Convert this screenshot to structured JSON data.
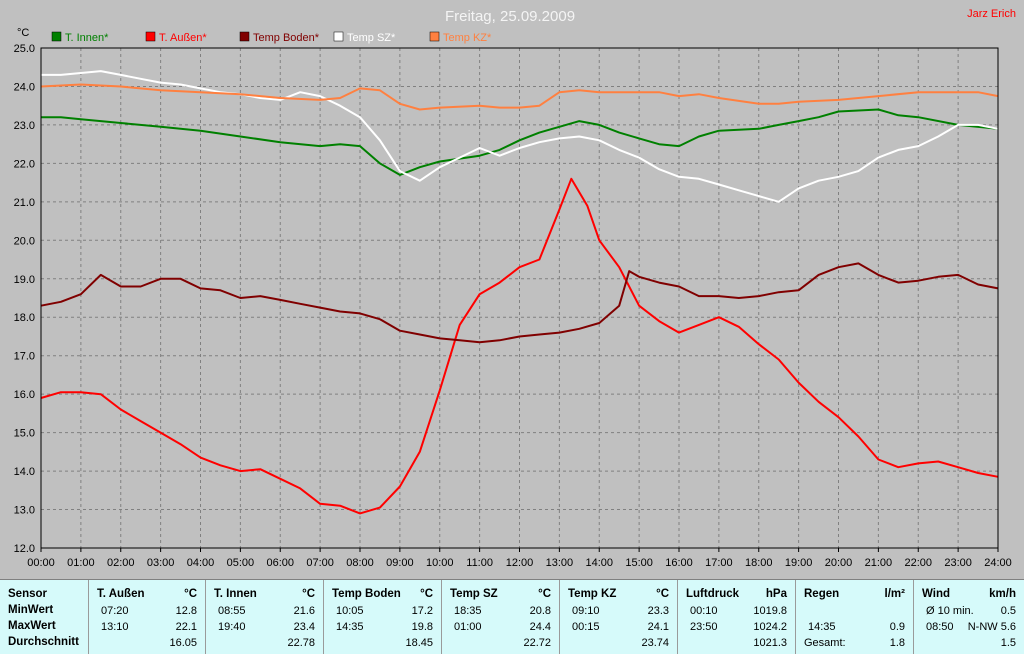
{
  "chart_data": {
    "type": "line",
    "title": "Freitag, 25.09.2009",
    "author": "Jarz Erich",
    "ylabel": "°C",
    "ylim": [
      12.0,
      25.0
    ],
    "yticks": [
      "12.0",
      "13.0",
      "14.0",
      "15.0",
      "16.0",
      "17.0",
      "18.0",
      "19.0",
      "20.0",
      "21.0",
      "22.0",
      "23.0",
      "24.0",
      "25.0"
    ],
    "xlim": [
      0,
      24
    ],
    "xticks": [
      "00:00",
      "01:00",
      "02:00",
      "03:00",
      "04:00",
      "05:00",
      "06:00",
      "07:00",
      "08:00",
      "09:00",
      "10:00",
      "11:00",
      "12:00",
      "13:00",
      "14:00",
      "15:00",
      "16:00",
      "17:00",
      "18:00",
      "19:00",
      "20:00",
      "21:00",
      "22:00",
      "23:00",
      "24:00"
    ],
    "grid": true,
    "legend_position": "top-left",
    "series": [
      {
        "name": "T. Innen*",
        "color": "#008000",
        "points": [
          [
            0,
            23.2
          ],
          [
            0.5,
            23.2
          ],
          [
            1,
            23.15
          ],
          [
            2,
            23.05
          ],
          [
            3,
            22.95
          ],
          [
            4,
            22.85
          ],
          [
            5,
            22.7
          ],
          [
            6,
            22.55
          ],
          [
            7,
            22.45
          ],
          [
            7.5,
            22.5
          ],
          [
            8,
            22.45
          ],
          [
            8.5,
            22.0
          ],
          [
            9,
            21.7
          ],
          [
            9.5,
            21.9
          ],
          [
            10,
            22.05
          ],
          [
            11,
            22.2
          ],
          [
            11.5,
            22.35
          ],
          [
            12,
            22.6
          ],
          [
            12.5,
            22.8
          ],
          [
            13,
            22.95
          ],
          [
            13.5,
            23.1
          ],
          [
            14,
            23.0
          ],
          [
            14.5,
            22.8
          ],
          [
            15,
            22.65
          ],
          [
            15.5,
            22.5
          ],
          [
            16,
            22.45
          ],
          [
            16.5,
            22.7
          ],
          [
            17,
            22.85
          ],
          [
            18,
            22.9
          ],
          [
            18.5,
            23.0
          ],
          [
            19,
            23.1
          ],
          [
            19.5,
            23.2
          ],
          [
            20,
            23.35
          ],
          [
            21,
            23.4
          ],
          [
            21.5,
            23.25
          ],
          [
            22,
            23.2
          ],
          [
            23,
            23.0
          ],
          [
            24,
            22.9
          ]
        ]
      },
      {
        "name": "T. Außen*",
        "color": "#ff0000",
        "points": [
          [
            0,
            15.9
          ],
          [
            0.5,
            16.05
          ],
          [
            1,
            16.05
          ],
          [
            1.5,
            16.0
          ],
          [
            2,
            15.6
          ],
          [
            2.5,
            15.3
          ],
          [
            3,
            15.0
          ],
          [
            3.5,
            14.7
          ],
          [
            4,
            14.35
          ],
          [
            4.5,
            14.15
          ],
          [
            5,
            14.0
          ],
          [
            5.5,
            14.05
          ],
          [
            6,
            13.8
          ],
          [
            6.5,
            13.55
          ],
          [
            7,
            13.15
          ],
          [
            7.5,
            13.1
          ],
          [
            8,
            12.9
          ],
          [
            8.5,
            13.05
          ],
          [
            9,
            13.6
          ],
          [
            9.5,
            14.5
          ],
          [
            10,
            16.1
          ],
          [
            10.5,
            17.8
          ],
          [
            11,
            18.6
          ],
          [
            11.5,
            18.9
          ],
          [
            12,
            19.3
          ],
          [
            12.5,
            19.5
          ],
          [
            13,
            20.8
          ],
          [
            13.3,
            21.6
          ],
          [
            13.7,
            20.9
          ],
          [
            14,
            20.0
          ],
          [
            14.5,
            19.3
          ],
          [
            15,
            18.3
          ],
          [
            15.5,
            17.9
          ],
          [
            16,
            17.6
          ],
          [
            16.5,
            17.8
          ],
          [
            17,
            18.0
          ],
          [
            17.5,
            17.75
          ],
          [
            18,
            17.3
          ],
          [
            18.5,
            16.9
          ],
          [
            19,
            16.3
          ],
          [
            19.5,
            15.8
          ],
          [
            20,
            15.4
          ],
          [
            20.5,
            14.9
          ],
          [
            21,
            14.3
          ],
          [
            21.5,
            14.1
          ],
          [
            22,
            14.2
          ],
          [
            22.5,
            14.25
          ],
          [
            23,
            14.1
          ],
          [
            23.5,
            13.95
          ],
          [
            24,
            13.85
          ]
        ]
      },
      {
        "name": "Temp Boden*",
        "color": "#800000",
        "points": [
          [
            0,
            18.3
          ],
          [
            0.5,
            18.4
          ],
          [
            1,
            18.6
          ],
          [
            1.5,
            19.1
          ],
          [
            2,
            18.8
          ],
          [
            2.5,
            18.8
          ],
          [
            3,
            19.0
          ],
          [
            3.5,
            19.0
          ],
          [
            4,
            18.75
          ],
          [
            4.5,
            18.7
          ],
          [
            5,
            18.5
          ],
          [
            5.5,
            18.55
          ],
          [
            6,
            18.45
          ],
          [
            6.5,
            18.35
          ],
          [
            7,
            18.25
          ],
          [
            7.5,
            18.15
          ],
          [
            8,
            18.1
          ],
          [
            8.5,
            17.95
          ],
          [
            9,
            17.65
          ],
          [
            9.5,
            17.55
          ],
          [
            10,
            17.45
          ],
          [
            10.5,
            17.4
          ],
          [
            11,
            17.35
          ],
          [
            11.5,
            17.4
          ],
          [
            12,
            17.5
          ],
          [
            12.5,
            17.55
          ],
          [
            13,
            17.6
          ],
          [
            13.5,
            17.7
          ],
          [
            14,
            17.85
          ],
          [
            14.5,
            18.3
          ],
          [
            14.75,
            19.2
          ],
          [
            15,
            19.05
          ],
          [
            15.5,
            18.9
          ],
          [
            16,
            18.8
          ],
          [
            16.5,
            18.55
          ],
          [
            17,
            18.55
          ],
          [
            17.5,
            18.5
          ],
          [
            18,
            18.55
          ],
          [
            18.5,
            18.65
          ],
          [
            19,
            18.7
          ],
          [
            19.5,
            19.1
          ],
          [
            20,
            19.3
          ],
          [
            20.5,
            19.4
          ],
          [
            21,
            19.1
          ],
          [
            21.5,
            18.9
          ],
          [
            22,
            18.95
          ],
          [
            22.5,
            19.05
          ],
          [
            23,
            19.1
          ],
          [
            23.5,
            18.85
          ],
          [
            24,
            18.75
          ]
        ]
      },
      {
        "name": "Temp SZ*",
        "color": "#ffffff",
        "points": [
          [
            0,
            24.3
          ],
          [
            0.5,
            24.3
          ],
          [
            1,
            24.35
          ],
          [
            1.5,
            24.4
          ],
          [
            2,
            24.3
          ],
          [
            2.5,
            24.2
          ],
          [
            3,
            24.1
          ],
          [
            3.5,
            24.05
          ],
          [
            4,
            23.95
          ],
          [
            4.5,
            23.85
          ],
          [
            5,
            23.8
          ],
          [
            5.5,
            23.7
          ],
          [
            6,
            23.65
          ],
          [
            6.5,
            23.85
          ],
          [
            7,
            23.75
          ],
          [
            7.5,
            23.5
          ],
          [
            8,
            23.2
          ],
          [
            8.5,
            22.6
          ],
          [
            9,
            21.8
          ],
          [
            9.5,
            21.55
          ],
          [
            10,
            21.9
          ],
          [
            10.5,
            22.15
          ],
          [
            11,
            22.4
          ],
          [
            11.5,
            22.2
          ],
          [
            12,
            22.4
          ],
          [
            12.5,
            22.55
          ],
          [
            13,
            22.65
          ],
          [
            13.5,
            22.7
          ],
          [
            14,
            22.6
          ],
          [
            14.5,
            22.35
          ],
          [
            15,
            22.15
          ],
          [
            15.5,
            21.85
          ],
          [
            16,
            21.65
          ],
          [
            16.5,
            21.6
          ],
          [
            17,
            21.45
          ],
          [
            17.5,
            21.3
          ],
          [
            18,
            21.15
          ],
          [
            18.5,
            21.0
          ],
          [
            19,
            21.35
          ],
          [
            19.5,
            21.55
          ],
          [
            20,
            21.65
          ],
          [
            20.5,
            21.8
          ],
          [
            21,
            22.15
          ],
          [
            21.5,
            22.35
          ],
          [
            22,
            22.45
          ],
          [
            22.5,
            22.7
          ],
          [
            23,
            23.0
          ],
          [
            23.5,
            23.0
          ],
          [
            24,
            22.9
          ]
        ]
      },
      {
        "name": "Temp KZ*",
        "color": "#ff8040",
        "points": [
          [
            0,
            24.0
          ],
          [
            1,
            24.05
          ],
          [
            2,
            24.0
          ],
          [
            3,
            23.9
          ],
          [
            4,
            23.85
          ],
          [
            5,
            23.8
          ],
          [
            6,
            23.7
          ],
          [
            7,
            23.65
          ],
          [
            7.5,
            23.7
          ],
          [
            8,
            23.95
          ],
          [
            8.5,
            23.9
          ],
          [
            9,
            23.55
          ],
          [
            9.5,
            23.4
          ],
          [
            10,
            23.45
          ],
          [
            11,
            23.5
          ],
          [
            11.5,
            23.45
          ],
          [
            12,
            23.45
          ],
          [
            12.5,
            23.5
          ],
          [
            13,
            23.85
          ],
          [
            13.5,
            23.9
          ],
          [
            14,
            23.85
          ],
          [
            15,
            23.85
          ],
          [
            15.5,
            23.85
          ],
          [
            16,
            23.75
          ],
          [
            16.5,
            23.8
          ],
          [
            17,
            23.7
          ],
          [
            18,
            23.55
          ],
          [
            18.5,
            23.55
          ],
          [
            19,
            23.6
          ],
          [
            20,
            23.65
          ],
          [
            21,
            23.75
          ],
          [
            22,
            23.85
          ],
          [
            23,
            23.85
          ],
          [
            23.5,
            23.85
          ],
          [
            24,
            23.75
          ]
        ]
      }
    ]
  },
  "stats_table": {
    "columns": [
      {
        "header": "Sensor",
        "unit": "",
        "rows": [
          [
            "MinWert",
            "",
            ""
          ],
          [
            "MaxWert",
            "",
            ""
          ],
          [
            "Durchschnitt",
            "",
            ""
          ]
        ]
      },
      {
        "header": "T. Außen",
        "unit": "°C",
        "rows": [
          [
            "07:20",
            "12.8"
          ],
          [
            "13:10",
            "22.1"
          ],
          [
            "",
            "16.05"
          ]
        ]
      },
      {
        "header": "T. Innen",
        "unit": "°C",
        "rows": [
          [
            "08:55",
            "21.6"
          ],
          [
            "19:40",
            "23.4"
          ],
          [
            "",
            "22.78"
          ]
        ]
      },
      {
        "header": "Temp Boden",
        "unit": "°C",
        "rows": [
          [
            "10:05",
            "17.2"
          ],
          [
            "14:35",
            "19.8"
          ],
          [
            "",
            "18.45"
          ]
        ]
      },
      {
        "header": "Temp SZ",
        "unit": "°C",
        "rows": [
          [
            "18:35",
            "20.8"
          ],
          [
            "01:00",
            "24.4"
          ],
          [
            "",
            "22.72"
          ]
        ]
      },
      {
        "header": "Temp KZ",
        "unit": "°C",
        "rows": [
          [
            "09:10",
            "23.3"
          ],
          [
            "00:15",
            "24.1"
          ],
          [
            "",
            "23.74"
          ]
        ]
      },
      {
        "header": "Luftdruck",
        "unit": "hPa",
        "rows": [
          [
            "00:10",
            "1019.8"
          ],
          [
            "23:50",
            "1024.2"
          ],
          [
            "",
            "1021.3"
          ]
        ]
      },
      {
        "header": "Regen",
        "unit": "l/m²",
        "rows": [
          [
            "",
            ""
          ],
          [
            "14:35",
            "0.9"
          ],
          [
            "Gesamt:",
            "1.8"
          ]
        ]
      },
      {
        "header": "Wind",
        "unit": "km/h",
        "rows": [
          [
            "Ø 10 min.",
            "0.5"
          ],
          [
            "08:50",
            "N-NW 5.6"
          ],
          [
            "",
            "1.5"
          ]
        ]
      }
    ]
  }
}
